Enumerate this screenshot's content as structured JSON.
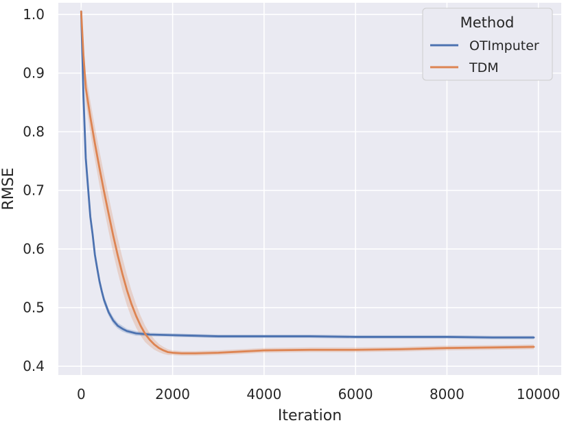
{
  "chart_data": {
    "type": "line",
    "xlabel": "Iteration",
    "ylabel": "RMSE",
    "xlim": [
      -500,
      10500
    ],
    "ylim": [
      0.385,
      1.02
    ],
    "xticks": [
      0,
      2000,
      4000,
      6000,
      8000,
      10000
    ],
    "xtick_labels": [
      "0",
      "2000",
      "4000",
      "6000",
      "8000",
      "10000"
    ],
    "yticks": [
      0.4,
      0.5,
      0.6,
      0.7,
      0.8,
      0.9,
      1.0
    ],
    "ytick_labels": [
      "0.4",
      "0.5",
      "0.6",
      "0.7",
      "0.8",
      "0.9",
      "1.0"
    ],
    "grid": true,
    "background": "#EAEAF2",
    "legend": {
      "title": "Method",
      "placement": "top-right"
    },
    "series": [
      {
        "name": "OTImputer",
        "color": "#4C72B0",
        "x": [
          0,
          50,
          100,
          150,
          200,
          250,
          300,
          350,
          400,
          450,
          500,
          600,
          700,
          800,
          900,
          1000,
          1200,
          1500,
          2000,
          2500,
          3000,
          4000,
          5000,
          6000,
          7000,
          8000,
          9000,
          9900
        ],
        "y": [
          1.005,
          0.86,
          0.755,
          0.705,
          0.655,
          0.625,
          0.59,
          0.567,
          0.545,
          0.528,
          0.513,
          0.492,
          0.478,
          0.469,
          0.464,
          0.46,
          0.456,
          0.454,
          0.453,
          0.452,
          0.451,
          0.451,
          0.451,
          0.45,
          0.45,
          0.45,
          0.449,
          0.449
        ],
        "band": [
          0.01,
          0.012,
          0.012,
          0.011,
          0.011,
          0.01,
          0.009,
          0.008,
          0.008,
          0.007,
          0.007,
          0.006,
          0.006,
          0.005,
          0.005,
          0.004,
          0.004,
          0.003,
          0.003,
          0.003,
          0.003,
          0.003,
          0.003,
          0.003,
          0.003,
          0.003,
          0.003,
          0.003
        ]
      },
      {
        "name": "TDM",
        "color": "#DD8452",
        "x": [
          0,
          50,
          100,
          200,
          300,
          400,
          500,
          600,
          700,
          800,
          900,
          1000,
          1100,
          1200,
          1300,
          1400,
          1500,
          1600,
          1700,
          1800,
          1900,
          2000,
          2200,
          2500,
          3000,
          3500,
          4000,
          5000,
          6000,
          7000,
          8000,
          9000,
          9900
        ],
        "y": [
          1.005,
          0.93,
          0.875,
          0.825,
          0.78,
          0.738,
          0.698,
          0.66,
          0.623,
          0.589,
          0.558,
          0.53,
          0.506,
          0.486,
          0.469,
          0.455,
          0.445,
          0.437,
          0.431,
          0.427,
          0.424,
          0.423,
          0.422,
          0.422,
          0.423,
          0.425,
          0.427,
          0.428,
          0.428,
          0.429,
          0.431,
          0.432,
          0.433
        ],
        "band": [
          0.008,
          0.02,
          0.025,
          0.027,
          0.028,
          0.029,
          0.03,
          0.03,
          0.03,
          0.029,
          0.028,
          0.026,
          0.023,
          0.02,
          0.017,
          0.014,
          0.011,
          0.009,
          0.007,
          0.006,
          0.005,
          0.004,
          0.004,
          0.004,
          0.004,
          0.004,
          0.004,
          0.004,
          0.004,
          0.004,
          0.004,
          0.004,
          0.004
        ]
      }
    ]
  }
}
